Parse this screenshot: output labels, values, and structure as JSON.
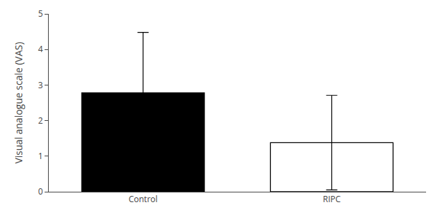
{
  "chart_data": {
    "type": "bar",
    "categories": [
      "Control",
      "RIPC"
    ],
    "values": [
      2.78,
      1.38
    ],
    "errors": [
      1.7,
      1.33
    ],
    "colors": [
      "#000000",
      "#ffffff"
    ],
    "ylabel": "Visual analogue scale (VAS)",
    "ylim": [
      0,
      5
    ],
    "yticks": [
      0,
      1,
      2,
      3,
      4,
      5
    ],
    "grid": false
  }
}
